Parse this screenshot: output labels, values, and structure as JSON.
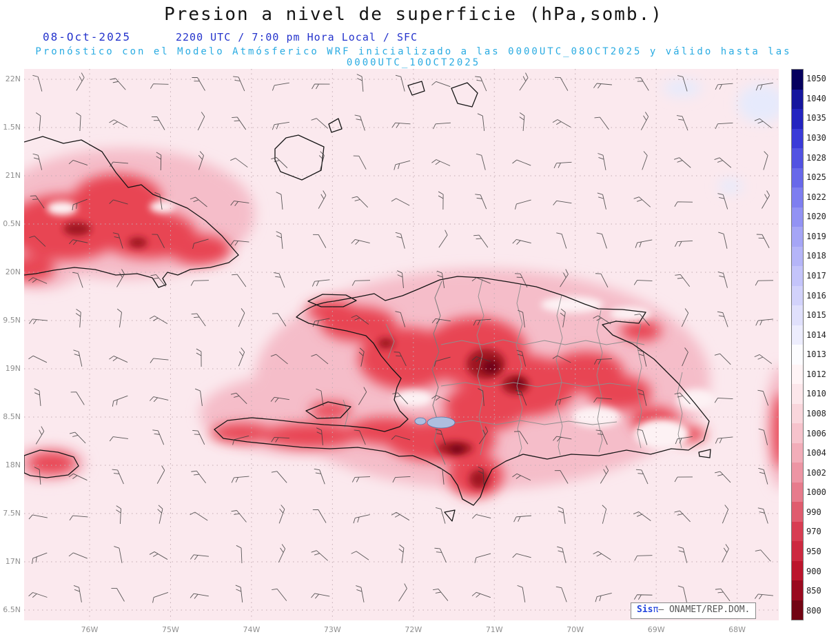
{
  "header": {
    "title": "Presion a nivel de superficie (hPa,somb.)",
    "date": "08-Oct-2025",
    "time_local": "2200 UTC / 7:00 pm Hora Local / SFC",
    "model_line": "Pronóstico con el Modelo Atmósferico WRF inicializado a las 0000UTC_08OCT2025 y válido hasta las  0000UTC_10OCT2025"
  },
  "axes": {
    "y_labels": [
      "22N",
      "1.5N",
      "21N",
      "0.5N",
      "20N",
      "9.5N",
      "19N",
      "8.5N",
      "18N",
      "7.5N",
      "17N",
      "6.5N"
    ],
    "x_labels": [
      "76W",
      "75W",
      "74W",
      "73W",
      "72W",
      "71W",
      "70W",
      "69W",
      "68W"
    ]
  },
  "colorbar": {
    "unit": "hPa",
    "values": [
      1050,
      1040,
      1035,
      1030,
      1028,
      1025,
      1022,
      1020,
      1019,
      1018,
      1017,
      1016,
      1015,
      1014,
      1013,
      1012,
      1010,
      1008,
      1006,
      1004,
      1002,
      1000,
      990,
      970,
      950,
      900,
      850,
      800
    ],
    "colors": [
      "#06005e",
      "#16169e",
      "#2424c0",
      "#3a3ad8",
      "#5252e2",
      "#6868ea",
      "#7e7ef0",
      "#9292f4",
      "#a5a5f6",
      "#b5b5f8",
      "#c4c4fa",
      "#d2d2fb",
      "#e0e0fc",
      "#ededfe",
      "#fcfcff",
      "#fff4f6",
      "#fce7eb",
      "#f9d6dc",
      "#f6c3cc",
      "#f2adb9",
      "#ed95a4",
      "#e77b8c",
      "#e05c6e",
      "#d83d52",
      "#cd2940",
      "#bc152c",
      "#9a0a1f",
      "#720413"
    ]
  },
  "attribution": {
    "brand": "Sis",
    "pi": "π",
    "source": "– ONAMET/REP.DOM."
  },
  "map_colors": {
    "sea_background": "#fbe9ee",
    "low_pressure_red": "#e84552",
    "dark_core": "#a01222",
    "grid": "#c3acb3",
    "high_pressure_blue": "#e6eafc"
  }
}
